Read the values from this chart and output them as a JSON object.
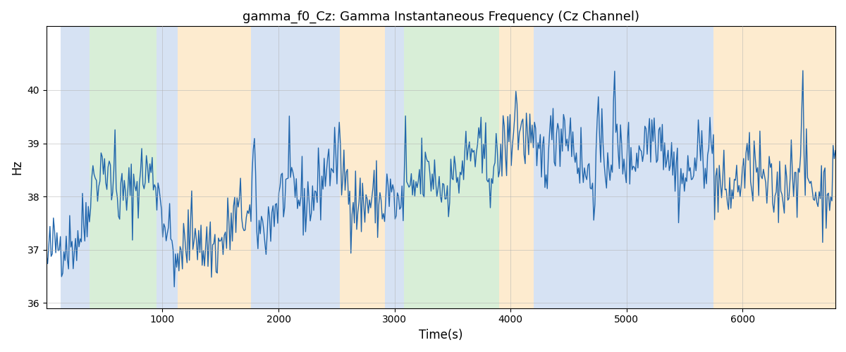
{
  "title": "gamma_f0_Cz: Gamma Instantaneous Frequency (Cz Channel)",
  "xlabel": "Time(s)",
  "ylabel": "Hz",
  "xlim": [
    0,
    6800
  ],
  "ylim": [
    35.9,
    41.2
  ],
  "yticks": [
    36,
    37,
    38,
    39,
    40
  ],
  "xticks": [
    1000,
    2000,
    3000,
    4000,
    5000,
    6000
  ],
  "line_color": "#2166ac",
  "line_width": 1.0,
  "background_color": "#ffffff",
  "grid_color": "#b0b0b0",
  "bands": [
    {
      "start": 120,
      "end": 370,
      "color": "#aec6e8",
      "alpha": 0.5
    },
    {
      "start": 370,
      "end": 950,
      "color": "#b2dfb0",
      "alpha": 0.5
    },
    {
      "start": 950,
      "end": 1130,
      "color": "#aec6e8",
      "alpha": 0.5
    },
    {
      "start": 1130,
      "end": 1760,
      "color": "#fdd9a0",
      "alpha": 0.5
    },
    {
      "start": 1760,
      "end": 2530,
      "color": "#aec6e8",
      "alpha": 0.5
    },
    {
      "start": 2530,
      "end": 2920,
      "color": "#fdd9a0",
      "alpha": 0.5
    },
    {
      "start": 2920,
      "end": 3080,
      "color": "#aec6e8",
      "alpha": 0.5
    },
    {
      "start": 3080,
      "end": 3900,
      "color": "#b2dfb0",
      "alpha": 0.5
    },
    {
      "start": 3900,
      "end": 4200,
      "color": "#fdd9a0",
      "alpha": 0.5
    },
    {
      "start": 4200,
      "end": 5750,
      "color": "#aec6e8",
      "alpha": 0.5
    },
    {
      "start": 5750,
      "end": 6800,
      "color": "#fdd9a0",
      "alpha": 0.5
    }
  ],
  "seed": 42,
  "n_points": 680
}
